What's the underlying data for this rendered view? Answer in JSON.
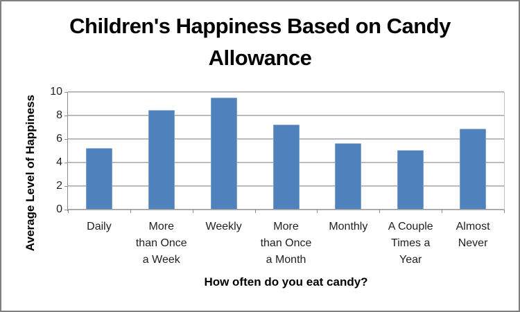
{
  "frame": {
    "background_color": "#ffffff",
    "border_color": "#7f7f7f"
  },
  "chart_data": {
    "type": "bar",
    "title": "Children's Happiness Based on Candy Allowance",
    "title_wrapped": "Children's Happiness Based on Candy\nAllowance",
    "categories": [
      "Daily",
      "More than Once a Week",
      "Weekly",
      "More than Once a Month",
      "Monthly",
      "A Couple Times a Year",
      "Almost Never"
    ],
    "category_labels_wrapped": [
      "Daily",
      "More\nthan Once\na Week",
      "Weekly",
      "More\nthan Once\na Month",
      "Monthly",
      "A Couple\nTimes a\nYear",
      "Almost\nNever"
    ],
    "values": [
      5.2,
      8.4,
      9.5,
      7.2,
      5.6,
      5.0,
      6.8
    ],
    "xlabel": "How often do you eat candy?",
    "ylabel": "Average Level of Happiness",
    "ylim": [
      0,
      10
    ],
    "yticks": [
      0,
      2,
      4,
      6,
      8,
      10
    ],
    "grid": "horizontal gridlines at each y tick",
    "legend": "none",
    "bar_color": "#4f81bd",
    "gridline_color": "#9d9da0",
    "axis_color": "#8c8c8c",
    "text_color": "#000000"
  }
}
